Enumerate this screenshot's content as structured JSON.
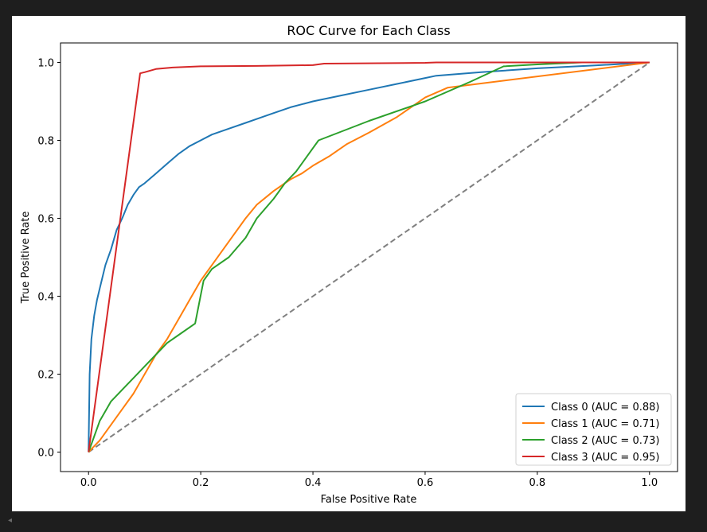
{
  "chart_data": {
    "type": "line",
    "title": "ROC Curve for Each Class",
    "xlabel": "False Positive Rate",
    "ylabel": "True Positive Rate",
    "xlim": [
      -0.05,
      1.05
    ],
    "ylim": [
      -0.05,
      1.05
    ],
    "xticks": [
      0.0,
      0.2,
      0.4,
      0.6,
      0.8,
      1.0
    ],
    "yticks": [
      0.0,
      0.2,
      0.4,
      0.6,
      0.8,
      1.0
    ],
    "tick_labels_x": [
      "0.0",
      "0.2",
      "0.4",
      "0.6",
      "0.8",
      "1.0"
    ],
    "tick_labels_y": [
      "0.0",
      "0.2",
      "0.4",
      "0.6",
      "0.8",
      "1.0"
    ],
    "legend_position": "lower-right",
    "grid": false,
    "series": [
      {
        "name": "Class 0 (AUC = 0.88)",
        "color": "#1f77b4",
        "x": [
          0.0,
          0.002,
          0.005,
          0.01,
          0.015,
          0.02,
          0.03,
          0.04,
          0.05,
          0.06,
          0.07,
          0.08,
          0.09,
          0.1,
          0.12,
          0.14,
          0.16,
          0.18,
          0.2,
          0.22,
          0.25,
          0.28,
          0.3,
          0.33,
          0.36,
          0.4,
          0.45,
          0.5,
          0.55,
          0.6,
          0.62,
          0.7,
          0.8,
          0.9,
          1.0
        ],
        "y": [
          0.0,
          0.2,
          0.29,
          0.35,
          0.39,
          0.42,
          0.48,
          0.52,
          0.57,
          0.6,
          0.635,
          0.66,
          0.68,
          0.69,
          0.715,
          0.74,
          0.765,
          0.785,
          0.8,
          0.815,
          0.83,
          0.845,
          0.855,
          0.87,
          0.885,
          0.9,
          0.915,
          0.93,
          0.945,
          0.96,
          0.966,
          0.975,
          0.985,
          0.992,
          1.0
        ]
      },
      {
        "name": "Class 1 (AUC = 0.71)",
        "color": "#ff7f0e",
        "x": [
          0.0,
          0.02,
          0.04,
          0.06,
          0.08,
          0.1,
          0.12,
          0.14,
          0.16,
          0.18,
          0.2,
          0.22,
          0.24,
          0.26,
          0.28,
          0.3,
          0.33,
          0.36,
          0.38,
          0.4,
          0.43,
          0.46,
          0.5,
          0.55,
          0.6,
          0.64,
          1.0
        ],
        "y": [
          0.0,
          0.03,
          0.07,
          0.11,
          0.15,
          0.2,
          0.25,
          0.29,
          0.34,
          0.39,
          0.44,
          0.48,
          0.52,
          0.56,
          0.6,
          0.635,
          0.67,
          0.7,
          0.715,
          0.735,
          0.76,
          0.79,
          0.82,
          0.86,
          0.91,
          0.935,
          1.0
        ]
      },
      {
        "name": "Class 2 (AUC = 0.73)",
        "color": "#2ca02c",
        "x": [
          0.0,
          0.02,
          0.04,
          0.06,
          0.08,
          0.1,
          0.12,
          0.14,
          0.16,
          0.19,
          0.205,
          0.22,
          0.25,
          0.28,
          0.3,
          0.33,
          0.35,
          0.37,
          0.39,
          0.41,
          0.5,
          0.6,
          0.68,
          0.74,
          0.8,
          0.88,
          0.95,
          1.0
        ],
        "y": [
          0.0,
          0.08,
          0.13,
          0.16,
          0.19,
          0.22,
          0.25,
          0.28,
          0.3,
          0.33,
          0.44,
          0.47,
          0.5,
          0.55,
          0.6,
          0.65,
          0.69,
          0.72,
          0.76,
          0.8,
          0.85,
          0.9,
          0.95,
          0.99,
          0.995,
          1.0,
          1.0,
          1.0
        ]
      },
      {
        "name": "Class 3 (AUC = 0.95)",
        "color": "#d62728",
        "x": [
          0.0,
          0.092,
          0.1,
          0.12,
          0.15,
          0.2,
          0.3,
          0.4,
          0.42,
          0.6,
          0.62,
          0.8,
          1.0
        ],
        "y": [
          0.0,
          0.972,
          0.975,
          0.983,
          0.987,
          0.99,
          0.991,
          0.993,
          0.997,
          0.999,
          1.0,
          1.0,
          1.0
        ]
      }
    ],
    "reference_line": {
      "x": [
        0.0,
        1.0
      ],
      "y": [
        0.0,
        1.0
      ],
      "color": "#808080",
      "style": "dashed"
    }
  },
  "window": {
    "scroll_indicator": "◂"
  }
}
